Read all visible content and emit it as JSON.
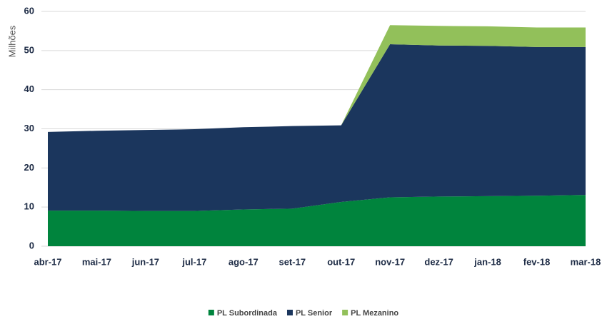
{
  "chart_data": {
    "type": "stacked_area",
    "y_label": "Milhões",
    "categories": [
      "abr-17",
      "mai-17",
      "jun-17",
      "jul-17",
      "ago-17",
      "set-17",
      "out-17",
      "nov-17",
      "dez-17",
      "jan-18",
      "fev-18",
      "mar-18"
    ],
    "series": [
      {
        "name": "PL Subordinada",
        "color": "#00843d",
        "values": [
          9.1,
          9.1,
          9.0,
          9.0,
          9.4,
          9.6,
          11.3,
          12.5,
          12.7,
          12.8,
          12.9,
          13.1
        ]
      },
      {
        "name": "PL Senior",
        "color": "#1b365d",
        "values": [
          20.1,
          20.4,
          20.7,
          20.9,
          21.0,
          21.1,
          19.6,
          39.1,
          38.6,
          38.4,
          38.0,
          37.8
        ]
      },
      {
        "name": "PL Mezanino",
        "color": "#92c05a",
        "values": [
          0,
          0,
          0,
          0,
          0,
          0,
          0,
          4.9,
          5.0,
          5.0,
          5.0,
          5.0
        ]
      }
    ],
    "ylim": [
      0,
      60
    ],
    "yticks": [
      0,
      10,
      20,
      30,
      40,
      50,
      60
    ],
    "grid": true,
    "legend": "bottom"
  }
}
